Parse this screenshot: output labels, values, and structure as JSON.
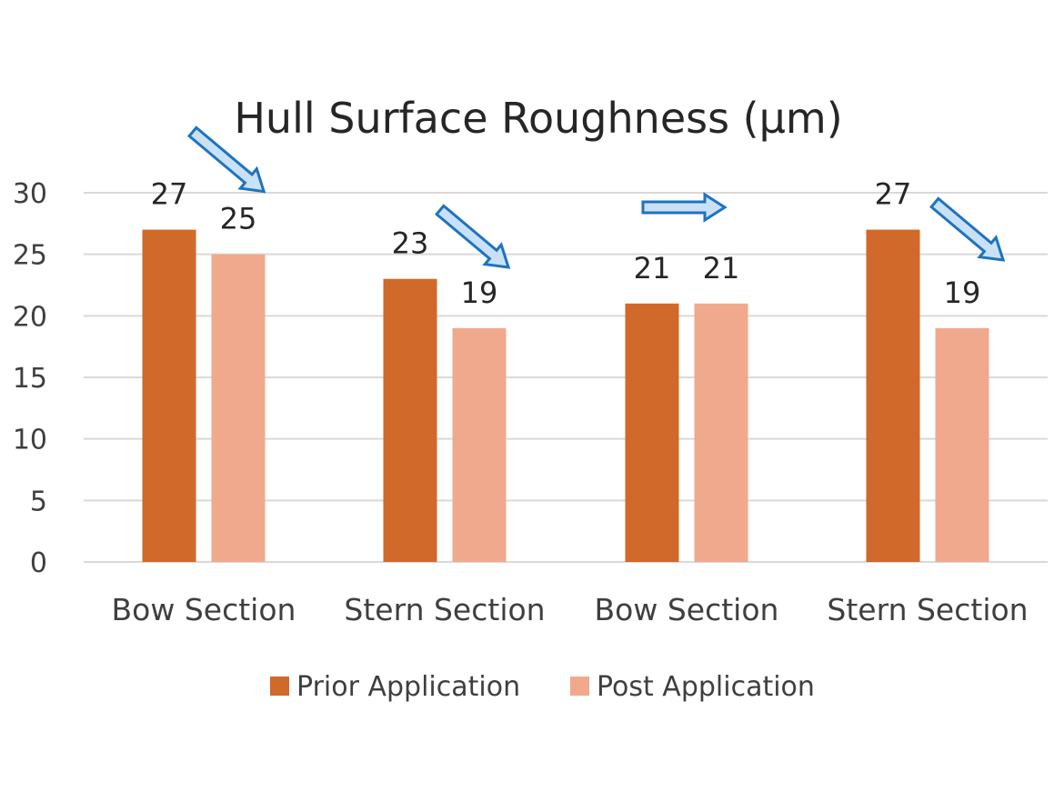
{
  "chart_data": {
    "type": "bar",
    "title": "Hull Surface Roughness (µm)",
    "xlabel": "",
    "ylabel": "",
    "categories": [
      "Bow Section",
      "Stern Section",
      "Bow Section",
      "Stern Section"
    ],
    "series": [
      {
        "name": "Prior Application",
        "values": [
          27,
          23,
          21,
          27
        ]
      },
      {
        "name": "Post Application",
        "values": [
          25,
          19,
          21,
          19
        ]
      }
    ],
    "ylim": [
      0,
      30
    ],
    "yticks": [
      0,
      5,
      10,
      15,
      20,
      25,
      30
    ],
    "data_labels": {
      "Prior Application": [
        "27",
        "23",
        "21",
        "27"
      ],
      "Post Application": [
        "25",
        "19",
        "21",
        "19"
      ]
    },
    "grid": true,
    "legend_position": "bottom",
    "colors": {
      "Prior Application": "#d0692a",
      "Post Application": "#f0a98c",
      "gridline": "#d9d9d9",
      "arrow_fill": "#c9e1f7",
      "arrow_stroke": "#1e73be",
      "text": "#262626",
      "axis_text": "#3f3f3f"
    },
    "annotations": [
      {
        "type": "arrow",
        "icon": "arrow-down-right-icon",
        "category_index": 0
      },
      {
        "type": "arrow",
        "icon": "arrow-down-right-icon",
        "category_index": 1
      },
      {
        "type": "arrow",
        "icon": "arrow-right-icon",
        "category_index": 2
      },
      {
        "type": "arrow",
        "icon": "arrow-down-right-icon",
        "category_index": 3
      }
    ]
  }
}
